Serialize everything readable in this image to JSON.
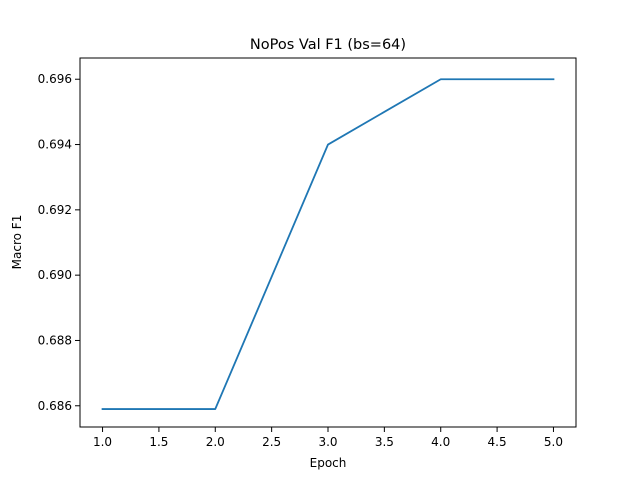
{
  "chart_data": {
    "type": "line",
    "title": "NoPos Val F1 (bs=64)",
    "xlabel": "Epoch",
    "ylabel": "Macro F1",
    "x": [
      1.0,
      2.0,
      3.0,
      4.0,
      5.0
    ],
    "series": [
      {
        "values": [
          0.6859,
          0.6859,
          0.694,
          0.696,
          0.696
        ],
        "color": "#1f77b4"
      }
    ],
    "xlim": [
      0.8,
      5.2
    ],
    "ylim": [
      0.68535,
      0.69665
    ],
    "xticks": [
      1.0,
      1.5,
      2.0,
      2.5,
      3.0,
      3.5,
      4.0,
      4.5,
      5.0
    ],
    "xtick_labels": [
      "1.0",
      "1.5",
      "2.0",
      "2.5",
      "3.0",
      "3.5",
      "4.0",
      "4.5",
      "5.0"
    ],
    "yticks": [
      0.686,
      0.688,
      0.69,
      0.692,
      0.694,
      0.696
    ],
    "ytick_labels": [
      "0.686",
      "0.688",
      "0.690",
      "0.692",
      "0.694",
      "0.696"
    ],
    "grid": false,
    "legend": "none"
  }
}
